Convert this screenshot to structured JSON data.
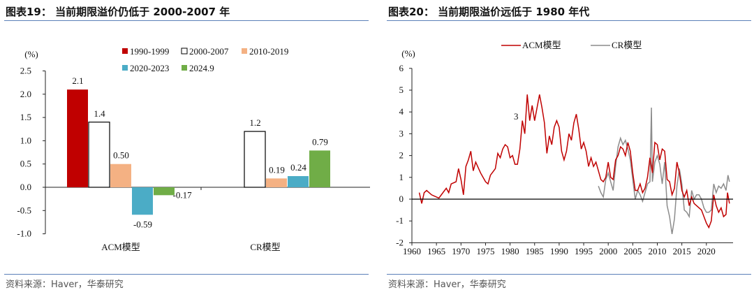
{
  "left": {
    "title": "图表19： 当前期限溢价仍低于 2000-2007 年",
    "source": "资料来源：Haver，华泰研究"
  },
  "right": {
    "title": "图表20： 当前期限溢价远低于 1980 年代",
    "source": "资料来源：Haver，华泰研究"
  },
  "chart_data": [
    {
      "type": "bar",
      "ylabel": "(%)",
      "ylim": [
        -1.0,
        2.5
      ],
      "yticks": [
        "2.5",
        "2.0",
        "1.5",
        "1.0",
        "0.5",
        "0.0",
        "-0.5",
        "-1.0"
      ],
      "categories": [
        "ACM模型",
        "CR模型"
      ],
      "legend": "top",
      "series": [
        {
          "name": "1990-1999",
          "color": "#c00000",
          "values": [
            2.1,
            null
          ],
          "labels": [
            "2.1",
            ""
          ]
        },
        {
          "name": "2000-2007",
          "color": "#ffffff",
          "values": [
            1.4,
            1.2
          ],
          "labels": [
            "1.4",
            "1.2"
          ]
        },
        {
          "name": "2010-2019",
          "color": "#f4b183",
          "values": [
            0.5,
            0.19
          ],
          "labels": [
            "0.50",
            "0.19"
          ]
        },
        {
          "name": "2020-2023",
          "color": "#4bacc6",
          "values": [
            -0.59,
            0.24
          ],
          "labels": [
            "-0.59",
            "0.24"
          ]
        },
        {
          "name": "2024.9",
          "color": "#70ad47",
          "values": [
            -0.17,
            0.79
          ],
          "labels": [
            "-0.17",
            "0.79"
          ]
        }
      ]
    },
    {
      "type": "line",
      "ylabel": "(%)",
      "ylim": [
        -2,
        6
      ],
      "xlim": [
        1960,
        2025
      ],
      "legend": "top",
      "yticks": [
        "6",
        "5",
        "4",
        "3",
        "2",
        "1",
        "0",
        "-1",
        "-2"
      ],
      "xticks": [
        "1960",
        "1965",
        "1970",
        "1975",
        "1980",
        "1985",
        "1990",
        "1995",
        "2000",
        "2005",
        "2010",
        "2015",
        "2020"
      ],
      "annotation": "3",
      "series": [
        {
          "name": "ACM模型",
          "color": "#c00000",
          "points": [
            [
              1961.5,
              0.3
            ],
            [
              1962,
              -0.2
            ],
            [
              1962.5,
              0.3
            ],
            [
              1963,
              0.4
            ],
            [
              1964,
              0.2
            ],
            [
              1965,
              0.1
            ],
            [
              1965.5,
              0.05
            ],
            [
              1966,
              0.2
            ],
            [
              1967,
              0.5
            ],
            [
              1967.5,
              0.3
            ],
            [
              1968,
              0.7
            ],
            [
              1969,
              0.8
            ],
            [
              1969.5,
              1.4
            ],
            [
              1970,
              0.9
            ],
            [
              1970.5,
              0.2
            ],
            [
              1971,
              1.5
            ],
            [
              1971.5,
              1.8
            ],
            [
              1972,
              2.2
            ],
            [
              1972.5,
              1.3
            ],
            [
              1973,
              1.7
            ],
            [
              1974,
              1.2
            ],
            [
              1975,
              0.8
            ],
            [
              1975.5,
              0.7
            ],
            [
              1976,
              1.1
            ],
            [
              1977,
              1.4
            ],
            [
              1977.5,
              2.1
            ],
            [
              1978,
              1.9
            ],
            [
              1978.5,
              2.3
            ],
            [
              1979,
              2.5
            ],
            [
              1979.5,
              2.4
            ],
            [
              1980,
              1.9
            ],
            [
              1980.5,
              2.0
            ],
            [
              1981,
              1.6
            ],
            [
              1981.5,
              1.6
            ],
            [
              1982,
              2.3
            ],
            [
              1982.5,
              3.6
            ],
            [
              1983,
              3.0
            ],
            [
              1983.5,
              4.8
            ],
            [
              1984,
              3.6
            ],
            [
              1984.5,
              4.3
            ],
            [
              1985,
              3.6
            ],
            [
              1985.5,
              4.2
            ],
            [
              1986,
              4.8
            ],
            [
              1986.5,
              4.2
            ],
            [
              1987,
              3.5
            ],
            [
              1987.5,
              2.1
            ],
            [
              1988,
              2.9
            ],
            [
              1988.5,
              2.5
            ],
            [
              1989,
              3.3
            ],
            [
              1989.5,
              3.6
            ],
            [
              1990,
              3.3
            ],
            [
              1990.5,
              2.2
            ],
            [
              1991,
              1.8
            ],
            [
              1991.5,
              2.2
            ],
            [
              1992,
              3.0
            ],
            [
              1992.5,
              2.7
            ],
            [
              1993,
              3.5
            ],
            [
              1993.5,
              3.9
            ],
            [
              1994,
              3.2
            ],
            [
              1994.5,
              2.3
            ],
            [
              1995,
              2.6
            ],
            [
              1995.5,
              2.2
            ],
            [
              1996,
              1.5
            ],
            [
              1996.5,
              1.9
            ],
            [
              1997,
              1.5
            ],
            [
              1997.5,
              1.7
            ],
            [
              1998,
              1.3
            ],
            [
              1998.5,
              0.9
            ],
            [
              1999,
              0.8
            ],
            [
              1999.5,
              1.0
            ],
            [
              2000,
              1.7
            ],
            [
              2000.5,
              1.0
            ],
            [
              2001,
              0.9
            ],
            [
              2001.5,
              1.8
            ],
            [
              2002,
              2.0
            ],
            [
              2002.5,
              2.4
            ],
            [
              2003,
              2.3
            ],
            [
              2003.5,
              2.0
            ],
            [
              2004,
              2.6
            ],
            [
              2004.5,
              2.2
            ],
            [
              2005,
              1.2
            ],
            [
              2005.5,
              0.4
            ],
            [
              2006,
              0.4
            ],
            [
              2006.5,
              0.7
            ],
            [
              2007,
              0.3
            ],
            [
              2007.5,
              0.5
            ],
            [
              2008,
              1.0
            ],
            [
              2008.5,
              1.9
            ],
            [
              2009,
              1.2
            ],
            [
              2009.5,
              2.6
            ],
            [
              2010,
              2.5
            ],
            [
              2010.5,
              1.8
            ],
            [
              2011,
              2.3
            ],
            [
              2011.5,
              2.2
            ],
            [
              2012,
              0.9
            ],
            [
              2012.5,
              0.8
            ],
            [
              2013,
              0.2
            ],
            [
              2013.5,
              0.5
            ],
            [
              2014,
              1.7
            ],
            [
              2014.5,
              1.2
            ],
            [
              2015,
              0.4
            ],
            [
              2015.5,
              0.1
            ],
            [
              2016,
              0.4
            ],
            [
              2016.5,
              -0.3
            ],
            [
              2017,
              0.1
            ],
            [
              2017.5,
              -0.2
            ],
            [
              2018,
              -0.3
            ],
            [
              2018.5,
              -0.4
            ],
            [
              2019,
              -0.5
            ],
            [
              2019.5,
              -0.8
            ],
            [
              2020,
              -1.1
            ],
            [
              2020.5,
              -1.3
            ],
            [
              2021,
              -1.0
            ],
            [
              2021.5,
              0.2
            ],
            [
              2022,
              -0.3
            ],
            [
              2022.5,
              -0.6
            ],
            [
              2023,
              -0.4
            ],
            [
              2023.5,
              -0.8
            ],
            [
              2024,
              -0.7
            ],
            [
              2024.3,
              0.3
            ],
            [
              2024.7,
              -0.2
            ]
          ]
        },
        {
          "name": "CR模型",
          "color": "#8c8c8c",
          "points": [
            [
              1998,
              0.6
            ],
            [
              1998.5,
              0.3
            ],
            [
              1999,
              0.1
            ],
            [
              1999.5,
              0.9
            ],
            [
              2000,
              1.2
            ],
            [
              2000.5,
              0.8
            ],
            [
              2001,
              0.4
            ],
            [
              2001.5,
              1.5
            ],
            [
              2002,
              2.4
            ],
            [
              2002.5,
              2.8
            ],
            [
              2003,
              2.5
            ],
            [
              2003.5,
              2.7
            ],
            [
              2004,
              2.3
            ],
            [
              2004.5,
              1.8
            ],
            [
              2005,
              0.9
            ],
            [
              2005.5,
              0.0
            ],
            [
              2006,
              0.4
            ],
            [
              2006.5,
              0.2
            ],
            [
              2007,
              -0.1
            ],
            [
              2007.5,
              0.3
            ],
            [
              2008,
              0.7
            ],
            [
              2008.5,
              0.8
            ],
            [
              2008.8,
              4.2
            ],
            [
              2009,
              0.8
            ],
            [
              2009.5,
              1.7
            ],
            [
              2010,
              2.0
            ],
            [
              2010.5,
              1.6
            ],
            [
              2011,
              0.7
            ],
            [
              2011.5,
              1.7
            ],
            [
              2012,
              -0.3
            ],
            [
              2012.5,
              -0.8
            ],
            [
              2013,
              -1.6
            ],
            [
              2013.5,
              -0.9
            ],
            [
              2014,
              0.6
            ],
            [
              2014.5,
              1.4
            ],
            [
              2015,
              0.7
            ],
            [
              2015.5,
              -0.5
            ],
            [
              2016,
              -0.6
            ],
            [
              2016.5,
              -0.8
            ],
            [
              2017,
              0.4
            ],
            [
              2017.5,
              0.0
            ],
            [
              2018,
              0.2
            ],
            [
              2018.5,
              0.2
            ],
            [
              2019,
              0.0
            ],
            [
              2019.5,
              -0.4
            ],
            [
              2020,
              -0.6
            ],
            [
              2020.5,
              -0.6
            ],
            [
              2021,
              -0.5
            ],
            [
              2021.5,
              0.7
            ],
            [
              2022,
              0.3
            ],
            [
              2022.5,
              0.6
            ],
            [
              2023,
              0.5
            ],
            [
              2023.5,
              0.7
            ],
            [
              2024,
              0.4
            ],
            [
              2024.4,
              1.1
            ],
            [
              2024.7,
              0.8
            ]
          ]
        }
      ]
    }
  ]
}
